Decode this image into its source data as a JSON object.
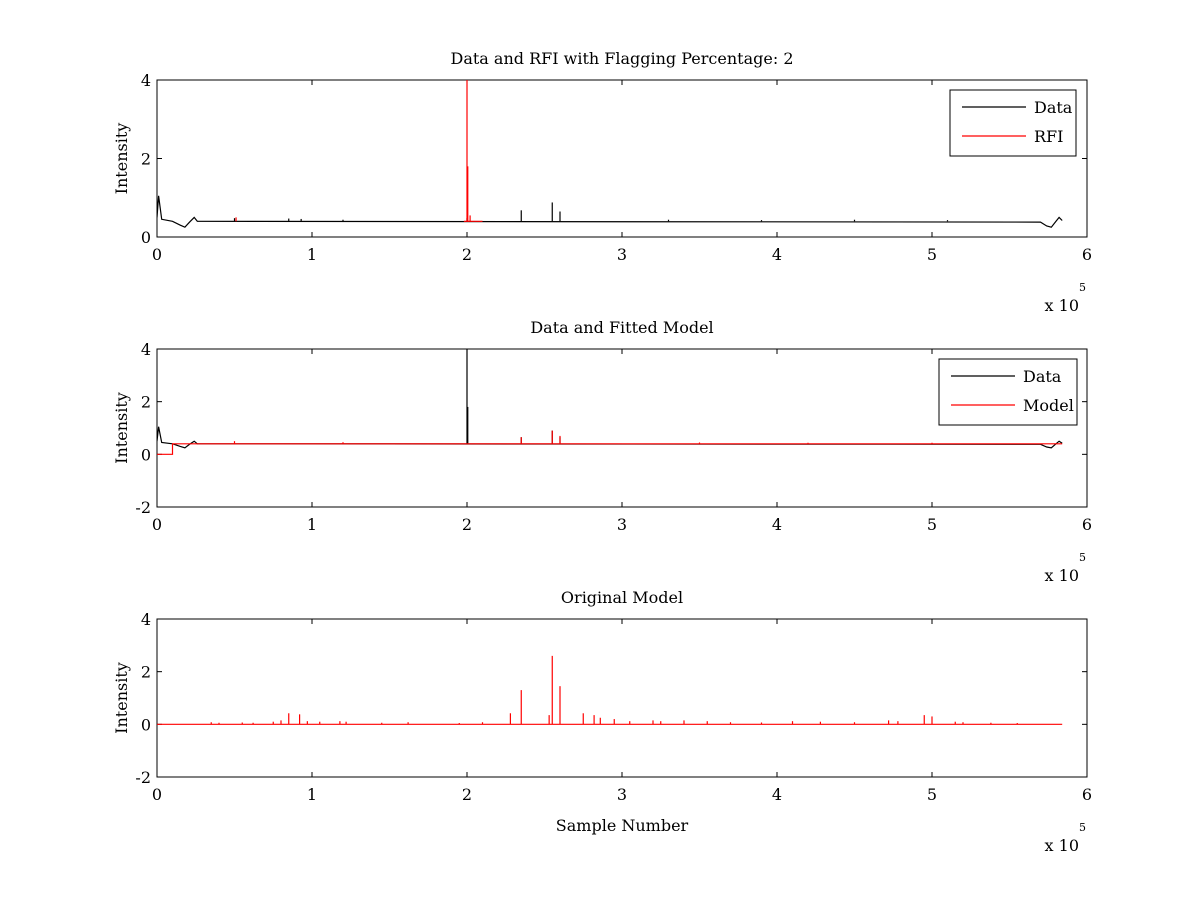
{
  "figure": {
    "background": "#ffffff",
    "axis_color": "#000000"
  },
  "chart_data": [
    {
      "type": "line",
      "title": "Data and RFI with Flagging Percentage: 2",
      "xlabel": "",
      "ylabel": "Intensity",
      "xlim": [
        0,
        6
      ],
      "ylim": [
        0,
        4
      ],
      "xticks": [
        0,
        1,
        2,
        3,
        4,
        5,
        6
      ],
      "xtick_labels": [
        "0",
        "1",
        "2",
        "3",
        "4",
        "5",
        "6"
      ],
      "yticks": [
        0,
        2,
        4
      ],
      "ytick_labels": [
        "0",
        "2",
        "4"
      ],
      "x_multiplier": {
        "base": "x 10",
        "exponent": "5"
      },
      "legend": {
        "position": "top-right"
      },
      "series": [
        {
          "name": "Data",
          "color": "#000000",
          "baseline": 0.4,
          "points": [
            [
              0,
              0.5
            ],
            [
              0.01,
              1.05
            ],
            [
              0.03,
              0.45
            ],
            [
              0.1,
              0.4
            ],
            [
              0.15,
              0.3
            ],
            [
              0.18,
              0.25
            ],
            [
              0.21,
              0.38
            ],
            [
              0.24,
              0.5
            ],
            [
              0.26,
              0.4
            ],
            [
              5.7,
              0.38
            ],
            [
              5.74,
              0.28
            ],
            [
              5.77,
              0.25
            ],
            [
              5.8,
              0.4
            ],
            [
              5.82,
              0.5
            ],
            [
              5.84,
              0.42
            ]
          ],
          "spikes": [
            [
              0.5,
              0.48
            ],
            [
              0.85,
              0.47
            ],
            [
              0.93,
              0.46
            ],
            [
              1.2,
              0.44
            ],
            [
              2.0,
              0.48
            ],
            [
              2.35,
              0.68
            ],
            [
              2.55,
              0.88
            ],
            [
              2.6,
              0.65
            ],
            [
              3.3,
              0.44
            ],
            [
              3.9,
              0.43
            ],
            [
              4.5,
              0.44
            ],
            [
              5.1,
              0.43
            ]
          ]
        },
        {
          "name": "RFI",
          "color": "#ff0000",
          "baseline": 0.4,
          "points": [
            [
              1.98,
              0.4
            ],
            [
              2.1,
              0.4
            ]
          ],
          "spikes": [
            [
              0.51,
              0.5
            ],
            [
              2.0,
              4.0
            ],
            [
              2.005,
              1.8
            ],
            [
              2.02,
              0.55
            ]
          ]
        }
      ]
    },
    {
      "type": "line",
      "title": "Data and Fitted Model",
      "xlabel": "",
      "ylabel": "Intensity",
      "xlim": [
        0,
        6
      ],
      "ylim": [
        -2,
        4
      ],
      "xticks": [
        0,
        1,
        2,
        3,
        4,
        5,
        6
      ],
      "xtick_labels": [
        "0",
        "1",
        "2",
        "3",
        "4",
        "5",
        "6"
      ],
      "yticks": [
        -2,
        0,
        2,
        4
      ],
      "ytick_labels": [
        "-2",
        "0",
        "2",
        "4"
      ],
      "x_multiplier": {
        "base": "x 10",
        "exponent": "5"
      },
      "legend": {
        "position": "top-right"
      },
      "series": [
        {
          "name": "Data",
          "color": "#000000",
          "baseline": 0.4,
          "points": [
            [
              0,
              0.5
            ],
            [
              0.01,
              1.05
            ],
            [
              0.03,
              0.45
            ],
            [
              0.1,
              0.4
            ],
            [
              0.15,
              0.3
            ],
            [
              0.18,
              0.25
            ],
            [
              0.21,
              0.38
            ],
            [
              0.24,
              0.5
            ],
            [
              0.26,
              0.4
            ],
            [
              5.7,
              0.38
            ],
            [
              5.74,
              0.28
            ],
            [
              5.77,
              0.25
            ],
            [
              5.8,
              0.4
            ],
            [
              5.82,
              0.5
            ],
            [
              5.84,
              0.42
            ]
          ],
          "spikes": [
            [
              2.0,
              4.0
            ],
            [
              2.005,
              1.8
            ],
            [
              2.35,
              0.65
            ],
            [
              2.55,
              0.9
            ],
            [
              2.6,
              0.65
            ]
          ]
        },
        {
          "name": "Model",
          "color": "#ff0000",
          "baseline": 0.4,
          "points": [
            [
              0,
              0.0
            ],
            [
              0.1,
              0.0
            ],
            [
              0.1,
              0.4
            ],
            [
              5.84,
              0.4
            ]
          ],
          "spikes": [
            [
              0.5,
              0.5
            ],
            [
              2.35,
              0.65
            ],
            [
              2.55,
              0.9
            ],
            [
              2.6,
              0.7
            ],
            [
              1.2,
              0.46
            ],
            [
              3.5,
              0.45
            ],
            [
              4.2,
              0.44
            ],
            [
              5.0,
              0.44
            ]
          ]
        }
      ]
    },
    {
      "type": "line",
      "title": "Original Model",
      "xlabel": "Sample Number",
      "ylabel": "Intensity",
      "xlim": [
        0,
        6
      ],
      "ylim": [
        -2,
        4
      ],
      "xticks": [
        0,
        1,
        2,
        3,
        4,
        5,
        6
      ],
      "xtick_labels": [
        "0",
        "1",
        "2",
        "3",
        "4",
        "5",
        "6"
      ],
      "yticks": [
        -2,
        0,
        2,
        4
      ],
      "ytick_labels": [
        "-2",
        "0",
        "2",
        "4"
      ],
      "x_multiplier": {
        "base": "x 10",
        "exponent": "5"
      },
      "series": [
        {
          "color": "#ff0000",
          "baseline": 0.0,
          "points": [
            [
              0,
              0.0
            ],
            [
              5.84,
              0.0
            ]
          ],
          "spikes": [
            [
              0.35,
              0.08
            ],
            [
              0.4,
              0.06
            ],
            [
              0.55,
              0.07
            ],
            [
              0.62,
              0.06
            ],
            [
              0.75,
              0.1
            ],
            [
              0.8,
              0.15
            ],
            [
              0.85,
              0.42
            ],
            [
              0.92,
              0.38
            ],
            [
              0.97,
              0.12
            ],
            [
              1.05,
              0.1
            ],
            [
              1.18,
              0.12
            ],
            [
              1.22,
              0.1
            ],
            [
              1.45,
              0.06
            ],
            [
              1.62,
              0.08
            ],
            [
              1.95,
              0.05
            ],
            [
              2.1,
              0.08
            ],
            [
              2.28,
              0.42
            ],
            [
              2.35,
              1.3
            ],
            [
              2.53,
              0.35
            ],
            [
              2.55,
              2.6
            ],
            [
              2.6,
              1.45
            ],
            [
              2.75,
              0.42
            ],
            [
              2.82,
              0.35
            ],
            [
              2.86,
              0.25
            ],
            [
              2.95,
              0.2
            ],
            [
              3.05,
              0.12
            ],
            [
              3.2,
              0.15
            ],
            [
              3.25,
              0.12
            ],
            [
              3.4,
              0.15
            ],
            [
              3.55,
              0.12
            ],
            [
              3.7,
              0.08
            ],
            [
              3.9,
              0.07
            ],
            [
              4.1,
              0.12
            ],
            [
              4.28,
              0.1
            ],
            [
              4.5,
              0.08
            ],
            [
              4.72,
              0.15
            ],
            [
              4.78,
              0.12
            ],
            [
              4.95,
              0.35
            ],
            [
              5.0,
              0.3
            ],
            [
              5.15,
              0.1
            ],
            [
              5.2,
              0.08
            ],
            [
              5.38,
              0.06
            ],
            [
              5.55,
              0.05
            ]
          ]
        }
      ]
    }
  ]
}
